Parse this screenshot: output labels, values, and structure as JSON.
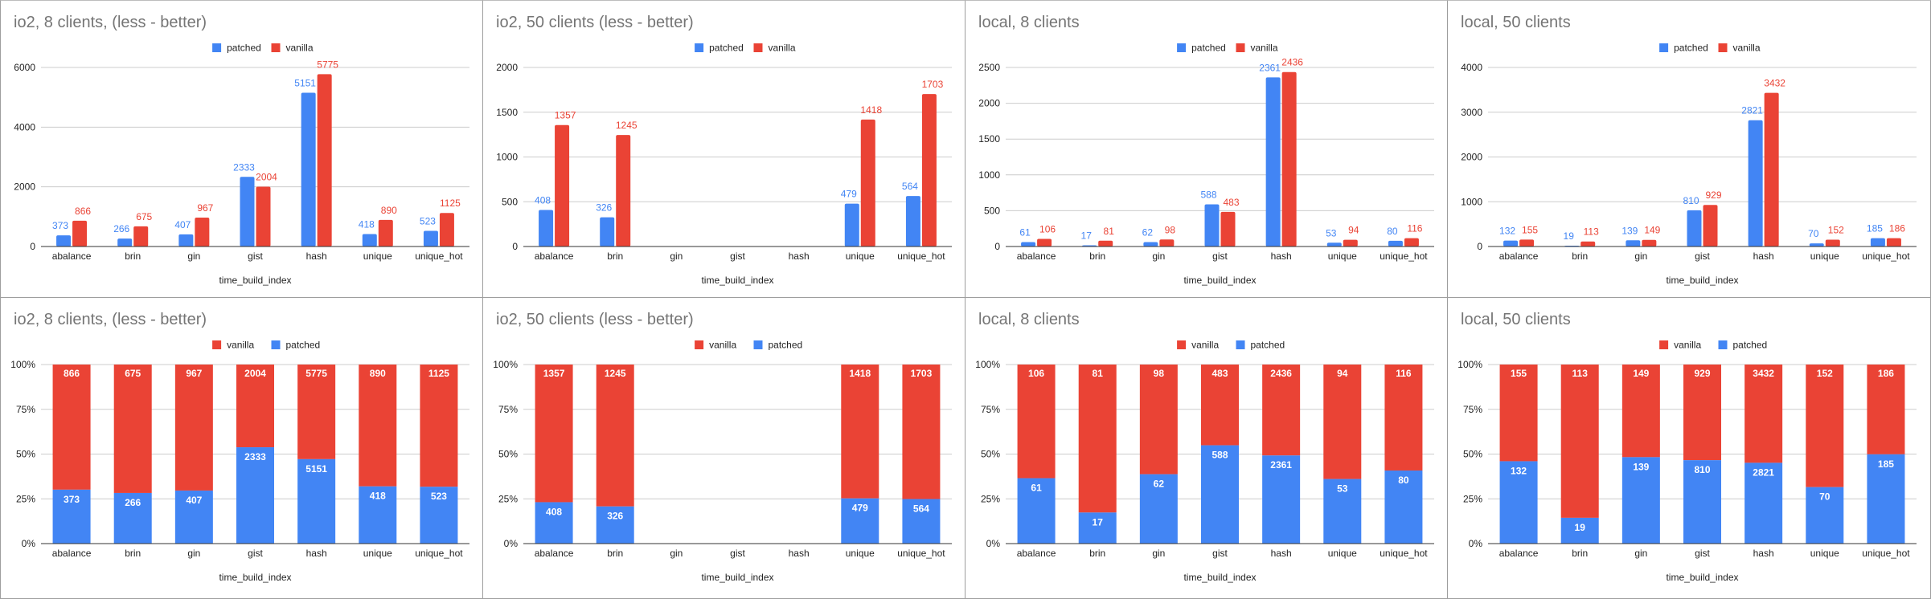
{
  "colors": {
    "patched": "#4285F4",
    "vanilla": "#EA4335",
    "grid": "#cccccc",
    "axis": "#333333",
    "title": "#757575"
  },
  "chart_data": [
    {
      "id": "io2-8-clustered",
      "type": "bar",
      "variant": "clustered",
      "title": "io2, 8 clients, (less - better)",
      "xlabel": "time_build_index",
      "ylabel": "",
      "categories": [
        "abalance",
        "brin",
        "gin",
        "gist",
        "hash",
        "unique",
        "unique_hot"
      ],
      "legend": [
        "patched",
        "vanilla"
      ],
      "legend_position": "top",
      "ylim": [
        0,
        6000
      ],
      "yticks": [
        "0",
        "2000",
        "4000",
        "6000"
      ],
      "ytick_values": [
        0,
        2000,
        4000,
        6000
      ],
      "grid": true,
      "series": [
        {
          "name": "patched",
          "values": [
            373,
            266,
            407,
            2333,
            5151,
            418,
            523
          ]
        },
        {
          "name": "vanilla",
          "values": [
            866,
            675,
            967,
            2004,
            5775,
            890,
            1125
          ]
        }
      ]
    },
    {
      "id": "io2-50-clustered",
      "type": "bar",
      "variant": "clustered",
      "title": "io2, 50 clients (less - better)",
      "xlabel": "time_build_index",
      "ylabel": "",
      "categories": [
        "abalance",
        "brin",
        "gin",
        "gist",
        "hash",
        "unique",
        "unique_hot"
      ],
      "legend": [
        "patched",
        "vanilla"
      ],
      "legend_position": "top",
      "ylim": [
        0,
        2000
      ],
      "yticks": [
        "0",
        "500",
        "1000",
        "1500",
        "2000"
      ],
      "ytick_values": [
        0,
        500,
        1000,
        1500,
        2000
      ],
      "grid": true,
      "series": [
        {
          "name": "patched",
          "values": [
            408,
            326,
            null,
            null,
            null,
            479,
            564
          ]
        },
        {
          "name": "vanilla",
          "values": [
            1357,
            1245,
            null,
            null,
            null,
            1418,
            1703
          ]
        }
      ]
    },
    {
      "id": "local-8-clustered",
      "type": "bar",
      "variant": "clustered",
      "title": "local, 8 clients",
      "xlabel": "time_build_index",
      "ylabel": "",
      "categories": [
        "abalance",
        "brin",
        "gin",
        "gist",
        "hash",
        "unique",
        "unique_hot"
      ],
      "legend": [
        "patched",
        "vanilla"
      ],
      "legend_position": "top",
      "ylim": [
        0,
        2500
      ],
      "yticks": [
        "0",
        "500",
        "1000",
        "1500",
        "2000",
        "2500"
      ],
      "ytick_values": [
        0,
        500,
        1000,
        1500,
        2000,
        2500
      ],
      "grid": true,
      "series": [
        {
          "name": "patched",
          "values": [
            61,
            17,
            62,
            588,
            2361,
            53,
            80
          ]
        },
        {
          "name": "vanilla",
          "values": [
            106,
            81,
            98,
            483,
            2436,
            94,
            116
          ]
        }
      ]
    },
    {
      "id": "local-50-clustered",
      "type": "bar",
      "variant": "clustered",
      "title": "local, 50 clients",
      "xlabel": "time_build_index",
      "ylabel": "",
      "categories": [
        "abalance",
        "brin",
        "gin",
        "gist",
        "hash",
        "unique",
        "unique_hot"
      ],
      "legend": [
        "patched",
        "vanilla"
      ],
      "legend_position": "top",
      "ylim": [
        0,
        4000
      ],
      "yticks": [
        "0",
        "1000",
        "2000",
        "3000",
        "4000"
      ],
      "ytick_values": [
        0,
        1000,
        2000,
        3000,
        4000
      ],
      "grid": true,
      "series": [
        {
          "name": "patched",
          "values": [
            132,
            19,
            139,
            810,
            2821,
            70,
            185
          ]
        },
        {
          "name": "vanilla",
          "values": [
            155,
            113,
            149,
            929,
            3432,
            152,
            186
          ]
        }
      ]
    },
    {
      "id": "io2-8-stacked",
      "type": "bar",
      "variant": "stacked-percent",
      "title": "io2, 8 clients, (less - better)",
      "xlabel": "time_build_index",
      "ylabel": "",
      "categories": [
        "abalance",
        "brin",
        "gin",
        "gist",
        "hash",
        "unique",
        "unique_hot"
      ],
      "legend": [
        "vanilla",
        "patched"
      ],
      "legend_position": "top",
      "ylim": [
        0,
        100
      ],
      "yticks": [
        "0%",
        "25%",
        "50%",
        "75%",
        "100%"
      ],
      "ytick_values": [
        0,
        25,
        50,
        75,
        100
      ],
      "grid": true,
      "series": [
        {
          "name": "patched",
          "values": [
            373,
            266,
            407,
            2333,
            5151,
            418,
            523
          ]
        },
        {
          "name": "vanilla",
          "values": [
            866,
            675,
            967,
            2004,
            5775,
            890,
            1125
          ]
        }
      ]
    },
    {
      "id": "io2-50-stacked",
      "type": "bar",
      "variant": "stacked-percent",
      "title": "io2, 50 clients (less - better)",
      "xlabel": "time_build_index",
      "ylabel": "",
      "categories": [
        "abalance",
        "brin",
        "gin",
        "gist",
        "hash",
        "unique",
        "unique_hot"
      ],
      "legend": [
        "vanilla",
        "patched"
      ],
      "legend_position": "top",
      "ylim": [
        0,
        100
      ],
      "yticks": [
        "0%",
        "25%",
        "50%",
        "75%",
        "100%"
      ],
      "ytick_values": [
        0,
        25,
        50,
        75,
        100
      ],
      "grid": true,
      "series": [
        {
          "name": "patched",
          "values": [
            408,
            326,
            null,
            null,
            null,
            479,
            564
          ]
        },
        {
          "name": "vanilla",
          "values": [
            1357,
            1245,
            null,
            null,
            null,
            1418,
            1703
          ]
        }
      ]
    },
    {
      "id": "local-8-stacked",
      "type": "bar",
      "variant": "stacked-percent",
      "title": "local, 8 clients",
      "xlabel": "time_build_index",
      "ylabel": "",
      "categories": [
        "abalance",
        "brin",
        "gin",
        "gist",
        "hash",
        "unique",
        "unique_hot"
      ],
      "legend": [
        "vanilla",
        "patched"
      ],
      "legend_position": "top",
      "ylim": [
        0,
        100
      ],
      "yticks": [
        "0%",
        "25%",
        "50%",
        "75%",
        "100%"
      ],
      "ytick_values": [
        0,
        25,
        50,
        75,
        100
      ],
      "grid": true,
      "series": [
        {
          "name": "patched",
          "values": [
            61,
            17,
            62,
            588,
            2361,
            53,
            80
          ]
        },
        {
          "name": "vanilla",
          "values": [
            106,
            81,
            98,
            483,
            2436,
            94,
            116
          ]
        }
      ]
    },
    {
      "id": "local-50-stacked",
      "type": "bar",
      "variant": "stacked-percent",
      "title": "local, 50 clients",
      "xlabel": "time_build_index",
      "ylabel": "",
      "categories": [
        "abalance",
        "brin",
        "gin",
        "gist",
        "hash",
        "unique",
        "unique_hot"
      ],
      "legend": [
        "vanilla",
        "patched"
      ],
      "legend_position": "top",
      "ylim": [
        0,
        100
      ],
      "yticks": [
        "0%",
        "25%",
        "50%",
        "75%",
        "100%"
      ],
      "ytick_values": [
        0,
        25,
        50,
        75,
        100
      ],
      "grid": true,
      "series": [
        {
          "name": "patched",
          "values": [
            132,
            19,
            139,
            810,
            2821,
            70,
            185
          ]
        },
        {
          "name": "vanilla",
          "values": [
            155,
            113,
            149,
            929,
            3432,
            152,
            186
          ]
        }
      ]
    }
  ]
}
